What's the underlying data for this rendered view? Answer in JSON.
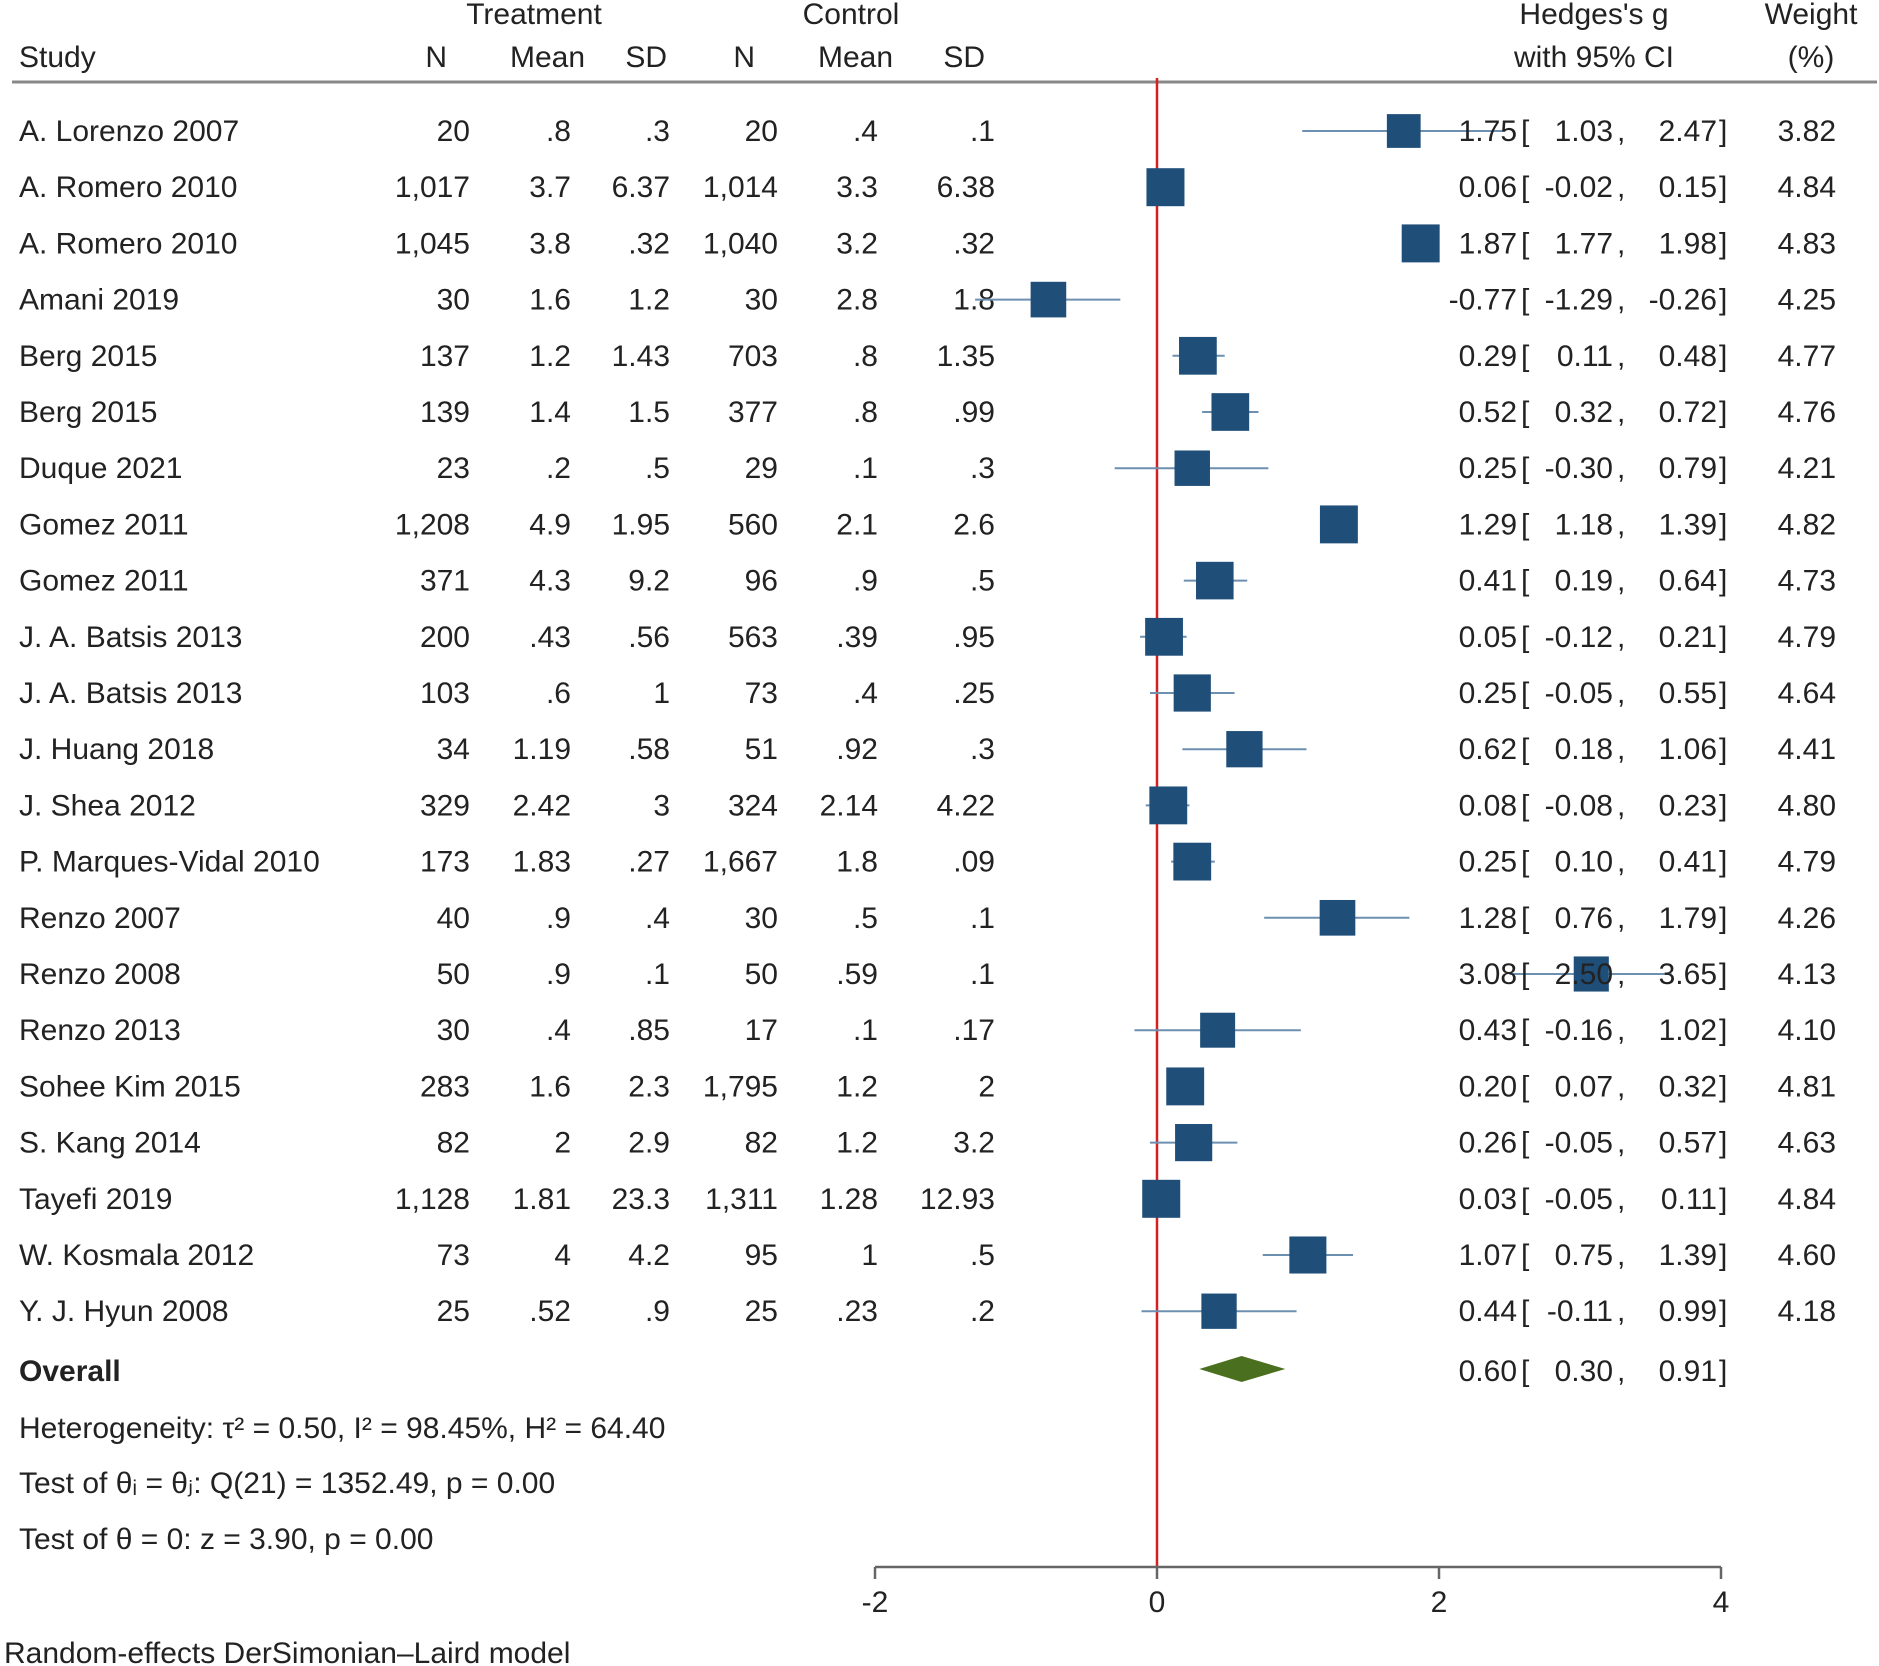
{
  "chart_data": {
    "type": "forest",
    "title": "",
    "columns": {
      "study": "Study",
      "treatment_group": "Treatment",
      "control_group": "Control",
      "n": "N",
      "mean": "Mean",
      "sd": "SD",
      "effect_line1": "Hedges's g",
      "effect_line2": "with 95% CI",
      "weight_line1": "Weight",
      "weight_line2": "(%)"
    },
    "studies": [
      {
        "study": "A. Lorenzo 2007",
        "t_n": "20",
        "t_mean": ".8",
        "t_sd": ".3",
        "c_n": "20",
        "c_mean": ".4",
        "c_sd": ".1",
        "g": 1.75,
        "lo": 1.03,
        "hi": 2.47,
        "g_txt": "1.75",
        "lo_txt": "1.03",
        "hi_txt": "2.47",
        "weight": "3.82"
      },
      {
        "study": "A. Romero 2010",
        "t_n": "1,017",
        "t_mean": "3.7",
        "t_sd": "6.37",
        "c_n": "1,014",
        "c_mean": "3.3",
        "c_sd": "6.38",
        "g": 0.06,
        "lo": -0.02,
        "hi": 0.15,
        "g_txt": "0.06",
        "lo_txt": "-0.02",
        "hi_txt": "0.15",
        "weight": "4.84"
      },
      {
        "study": "A. Romero 2010",
        "t_n": "1,045",
        "t_mean": "3.8",
        "t_sd": ".32",
        "c_n": "1,040",
        "c_mean": "3.2",
        "c_sd": ".32",
        "g": 1.87,
        "lo": 1.77,
        "hi": 1.98,
        "g_txt": "1.87",
        "lo_txt": "1.77",
        "hi_txt": "1.98",
        "weight": "4.83"
      },
      {
        "study": "Amani 2019",
        "t_n": "30",
        "t_mean": "1.6",
        "t_sd": "1.2",
        "c_n": "30",
        "c_mean": "2.8",
        "c_sd": "1.8",
        "g": -0.77,
        "lo": -1.29,
        "hi": -0.26,
        "g_txt": "-0.77",
        "lo_txt": "-1.29",
        "hi_txt": "-0.26",
        "weight": "4.25"
      },
      {
        "study": "Berg 2015",
        "t_n": "137",
        "t_mean": "1.2",
        "t_sd": "1.43",
        "c_n": "703",
        "c_mean": ".8",
        "c_sd": "1.35",
        "g": 0.29,
        "lo": 0.11,
        "hi": 0.48,
        "g_txt": "0.29",
        "lo_txt": "0.11",
        "hi_txt": "0.48",
        "weight": "4.77"
      },
      {
        "study": "Berg 2015",
        "t_n": "139",
        "t_mean": "1.4",
        "t_sd": "1.5",
        "c_n": "377",
        "c_mean": ".8",
        "c_sd": ".99",
        "g": 0.52,
        "lo": 0.32,
        "hi": 0.72,
        "g_txt": "0.52",
        "lo_txt": "0.32",
        "hi_txt": "0.72",
        "weight": "4.76"
      },
      {
        "study": "Duque 2021",
        "t_n": "23",
        "t_mean": ".2",
        "t_sd": ".5",
        "c_n": "29",
        "c_mean": ".1",
        "c_sd": ".3",
        "g": 0.25,
        "lo": -0.3,
        "hi": 0.79,
        "g_txt": "0.25",
        "lo_txt": "-0.30",
        "hi_txt": "0.79",
        "weight": "4.21"
      },
      {
        "study": "Gomez 2011",
        "t_n": "1,208",
        "t_mean": "4.9",
        "t_sd": "1.95",
        "c_n": "560",
        "c_mean": "2.1",
        "c_sd": "2.6",
        "g": 1.29,
        "lo": 1.18,
        "hi": 1.39,
        "g_txt": "1.29",
        "lo_txt": "1.18",
        "hi_txt": "1.39",
        "weight": "4.82"
      },
      {
        "study": "Gomez 2011",
        "t_n": "371",
        "t_mean": "4.3",
        "t_sd": "9.2",
        "c_n": "96",
        "c_mean": ".9",
        "c_sd": ".5",
        "g": 0.41,
        "lo": 0.19,
        "hi": 0.64,
        "g_txt": "0.41",
        "lo_txt": "0.19",
        "hi_txt": "0.64",
        "weight": "4.73"
      },
      {
        "study": "J. A. Batsis 2013",
        "t_n": "200",
        "t_mean": ".43",
        "t_sd": ".56",
        "c_n": "563",
        "c_mean": ".39",
        "c_sd": ".95",
        "g": 0.05,
        "lo": -0.12,
        "hi": 0.21,
        "g_txt": "0.05",
        "lo_txt": "-0.12",
        "hi_txt": "0.21",
        "weight": "4.79"
      },
      {
        "study": "J. A. Batsis 2013",
        "t_n": "103",
        "t_mean": ".6",
        "t_sd": "1",
        "c_n": "73",
        "c_mean": ".4",
        "c_sd": ".25",
        "g": 0.25,
        "lo": -0.05,
        "hi": 0.55,
        "g_txt": "0.25",
        "lo_txt": "-0.05",
        "hi_txt": "0.55",
        "weight": "4.64"
      },
      {
        "study": "J. Huang 2018",
        "t_n": "34",
        "t_mean": "1.19",
        "t_sd": ".58",
        "c_n": "51",
        "c_mean": ".92",
        "c_sd": ".3",
        "g": 0.62,
        "lo": 0.18,
        "hi": 1.06,
        "g_txt": "0.62",
        "lo_txt": "0.18",
        "hi_txt": "1.06",
        "weight": "4.41"
      },
      {
        "study": "J. Shea 2012",
        "t_n": "329",
        "t_mean": "2.42",
        "t_sd": "3",
        "c_n": "324",
        "c_mean": "2.14",
        "c_sd": "4.22",
        "g": 0.08,
        "lo": -0.08,
        "hi": 0.23,
        "g_txt": "0.08",
        "lo_txt": "-0.08",
        "hi_txt": "0.23",
        "weight": "4.80"
      },
      {
        "study": "P. Marques-Vidal 2010",
        "t_n": "173",
        "t_mean": "1.83",
        "t_sd": ".27",
        "c_n": "1,667",
        "c_mean": "1.8",
        "c_sd": ".09",
        "g": 0.25,
        "lo": 0.1,
        "hi": 0.41,
        "g_txt": "0.25",
        "lo_txt": "0.10",
        "hi_txt": "0.41",
        "weight": "4.79"
      },
      {
        "study": "Renzo 2007",
        "t_n": "40",
        "t_mean": ".9",
        "t_sd": ".4",
        "c_n": "30",
        "c_mean": ".5",
        "c_sd": ".1",
        "g": 1.28,
        "lo": 0.76,
        "hi": 1.79,
        "g_txt": "1.28",
        "lo_txt": "0.76",
        "hi_txt": "1.79",
        "weight": "4.26"
      },
      {
        "study": "Renzo 2008",
        "t_n": "50",
        "t_mean": ".9",
        "t_sd": ".1",
        "c_n": "50",
        "c_mean": ".59",
        "c_sd": ".1",
        "g": 3.08,
        "lo": 2.5,
        "hi": 3.65,
        "g_txt": "3.08",
        "lo_txt": "2.50",
        "hi_txt": "3.65",
        "weight": "4.13"
      },
      {
        "study": "Renzo 2013",
        "t_n": "30",
        "t_mean": ".4",
        "t_sd": ".85",
        "c_n": "17",
        "c_mean": ".1",
        "c_sd": ".17",
        "g": 0.43,
        "lo": -0.16,
        "hi": 1.02,
        "g_txt": "0.43",
        "lo_txt": "-0.16",
        "hi_txt": "1.02",
        "weight": "4.10"
      },
      {
        "study": "Sohee Kim 2015",
        "t_n": "283",
        "t_mean": "1.6",
        "t_sd": "2.3",
        "c_n": "1,795",
        "c_mean": "1.2",
        "c_sd": "2",
        "g": 0.2,
        "lo": 0.07,
        "hi": 0.32,
        "g_txt": "0.20",
        "lo_txt": "0.07",
        "hi_txt": "0.32",
        "weight": "4.81"
      },
      {
        "study": "S. Kang 2014",
        "t_n": "82",
        "t_mean": "2",
        "t_sd": "2.9",
        "c_n": "82",
        "c_mean": "1.2",
        "c_sd": "3.2",
        "g": 0.26,
        "lo": -0.05,
        "hi": 0.57,
        "g_txt": "0.26",
        "lo_txt": "-0.05",
        "hi_txt": "0.57",
        "weight": "4.63"
      },
      {
        "study": "Tayefi 2019",
        "t_n": "1,128",
        "t_mean": "1.81",
        "t_sd": "23.3",
        "c_n": "1,311",
        "c_mean": "1.28",
        "c_sd": "12.93",
        "g": 0.03,
        "lo": -0.05,
        "hi": 0.11,
        "g_txt": "0.03",
        "lo_txt": "-0.05",
        "hi_txt": "0.11",
        "weight": "4.84"
      },
      {
        "study": "W. Kosmala 2012",
        "t_n": "73",
        "t_mean": "4",
        "t_sd": "4.2",
        "c_n": "95",
        "c_mean": "1",
        "c_sd": ".5",
        "g": 1.07,
        "lo": 0.75,
        "hi": 1.39,
        "g_txt": "1.07",
        "lo_txt": "0.75",
        "hi_txt": "1.39",
        "weight": "4.60"
      },
      {
        "study": "Y. J. Hyun 2008",
        "t_n": "25",
        "t_mean": ".52",
        "t_sd": ".9",
        "c_n": "25",
        "c_mean": ".23",
        "c_sd": ".2",
        "g": 0.44,
        "lo": -0.11,
        "hi": 0.99,
        "g_txt": "0.44",
        "lo_txt": "-0.11",
        "hi_txt": "0.99",
        "weight": "4.18"
      }
    ],
    "overall": {
      "label": "Overall",
      "g": 0.6,
      "lo": 0.3,
      "hi": 0.91,
      "g_txt": "0.60",
      "lo_txt": "0.30",
      "hi_txt": "0.91"
    },
    "stats": {
      "heterogeneity": "Heterogeneity: τ² = 0.50, I² = 98.45%, H² = 64.40",
      "test_homogeneity": "Test of θᵢ = θⱼ: Q(21) = 1352.49, p = 0.00",
      "test_overall": "Test of θ = 0: z = 3.90, p = 0.00"
    },
    "x_axis": {
      "ticks": [
        -2,
        0,
        2,
        4
      ],
      "tick_labels": [
        "-2",
        "0",
        "2",
        "4"
      ],
      "range": [
        -2,
        4
      ],
      "reference_line": 0
    },
    "footnote": "Random-effects DerSimonian–Laird model",
    "colors": {
      "marker": "#1f4e79",
      "ci": "#6d8fb0",
      "diamond": "#4a6f1f",
      "refline": "#d42020",
      "rule": "#888888",
      "text": "#222222"
    }
  }
}
